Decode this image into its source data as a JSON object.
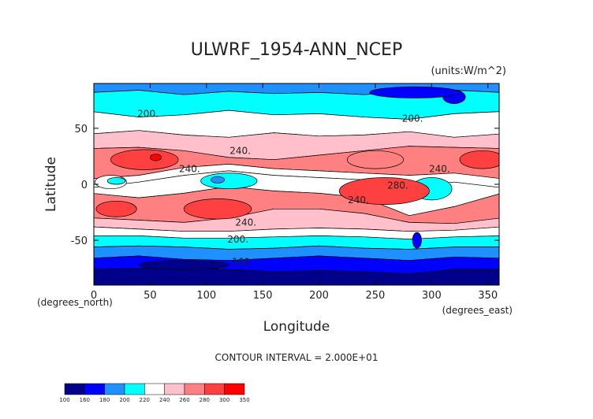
{
  "chart_data": {
    "type": "heatmap",
    "title": "ULWRF_1954-ANN_NCEP",
    "units": "(units:W/m^2)",
    "xlabel": "Longitude",
    "ylabel": "Latitude",
    "x_unit": "(degrees_east)",
    "y_unit": "(degrees_north)",
    "xlim": [
      0,
      360
    ],
    "ylim": [
      -90,
      90
    ],
    "x_ticks": [
      "0",
      "50",
      "100",
      "150",
      "200",
      "250",
      "300",
      "350"
    ],
    "x_tick_values": [
      0,
      50,
      100,
      150,
      200,
      250,
      300,
      350
    ],
    "y_ticks": [
      "50",
      "0",
      "-50"
    ],
    "y_tick_values": [
      50,
      0,
      -50
    ],
    "contour_interval": "CONTOUR INTERVAL = 2.000E+01",
    "colorbar_labels": [
      "100",
      "160",
      "180",
      "200",
      "220",
      "240",
      "260",
      "280",
      "300",
      "350"
    ],
    "colorbar_colors": [
      "#00008b",
      "#0000ff",
      "#1e90ff",
      "#00ffff",
      "#ffffff",
      "#ffc0cb",
      "#ff8080",
      "#ff4040",
      "#ff0000"
    ],
    "contour_labels": [
      {
        "text": "200.",
        "lon": 48,
        "lat": 60
      },
      {
        "text": "200.",
        "lon": 283,
        "lat": 56
      },
      {
        "text": "240.",
        "lon": 130,
        "lat": 27
      },
      {
        "text": "240.",
        "lon": 85,
        "lat": 11
      },
      {
        "text": "240.",
        "lon": 307,
        "lat": 11
      },
      {
        "text": "280.",
        "lon": 270,
        "lat": -4
      },
      {
        "text": "240.",
        "lon": 235,
        "lat": -17
      },
      {
        "text": "240.",
        "lon": 135,
        "lat": -37
      },
      {
        "text": "200.",
        "lon": 128,
        "lat": -52
      },
      {
        "text": "160.",
        "lon": 132,
        "lat": -72
      }
    ]
  }
}
